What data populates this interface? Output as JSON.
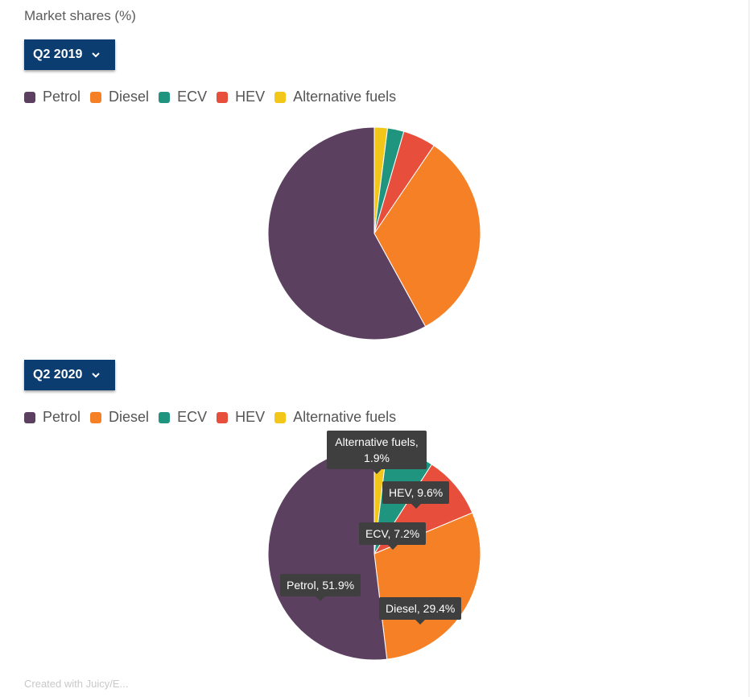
{
  "subtitle": "Market shares (%)",
  "colors": {
    "Petrol": "#5c4060",
    "Diesel": "#f58025",
    "ECV": "#1f9580",
    "HEV": "#e84e3c",
    "Alternative fuels": "#f2c71a",
    "dropdown": "#0b3d70"
  },
  "legend_items": [
    "Petrol",
    "Diesel",
    "ECV",
    "HEV",
    "Alternative fuels"
  ],
  "icons": {
    "dropdown": "chevron-down-icon"
  },
  "chart_data": [
    {
      "type": "pie",
      "period": "Q2 2019",
      "legend_position": "top-left",
      "slices": [
        {
          "name": "Alternative fuels",
          "value": 2.0
        },
        {
          "name": "ECV",
          "value": 2.5
        },
        {
          "name": "HEV",
          "value": 5.0
        },
        {
          "name": "Diesel",
          "value": 32.5
        },
        {
          "name": "Petrol",
          "value": 58.0
        }
      ]
    },
    {
      "type": "pie",
      "period": "Q2 2020",
      "legend_position": "top-left",
      "slices": [
        {
          "name": "Alternative fuels",
          "value": 1.9
        },
        {
          "name": "ECV",
          "value": 7.2
        },
        {
          "name": "HEV",
          "value": 9.6
        },
        {
          "name": "Diesel",
          "value": 29.4
        },
        {
          "name": "Petrol",
          "value": 51.9
        }
      ],
      "tooltips": {
        "alt_line1": "Alternative fuels,",
        "alt_line2": "1.9%",
        "hev": "HEV, 9.6%",
        "ecv": "ECV, 7.2%",
        "petrol": "Petrol, 51.9%",
        "diesel": "Diesel, 29.4%"
      }
    }
  ],
  "source_text": "Created with Juicy/E..."
}
